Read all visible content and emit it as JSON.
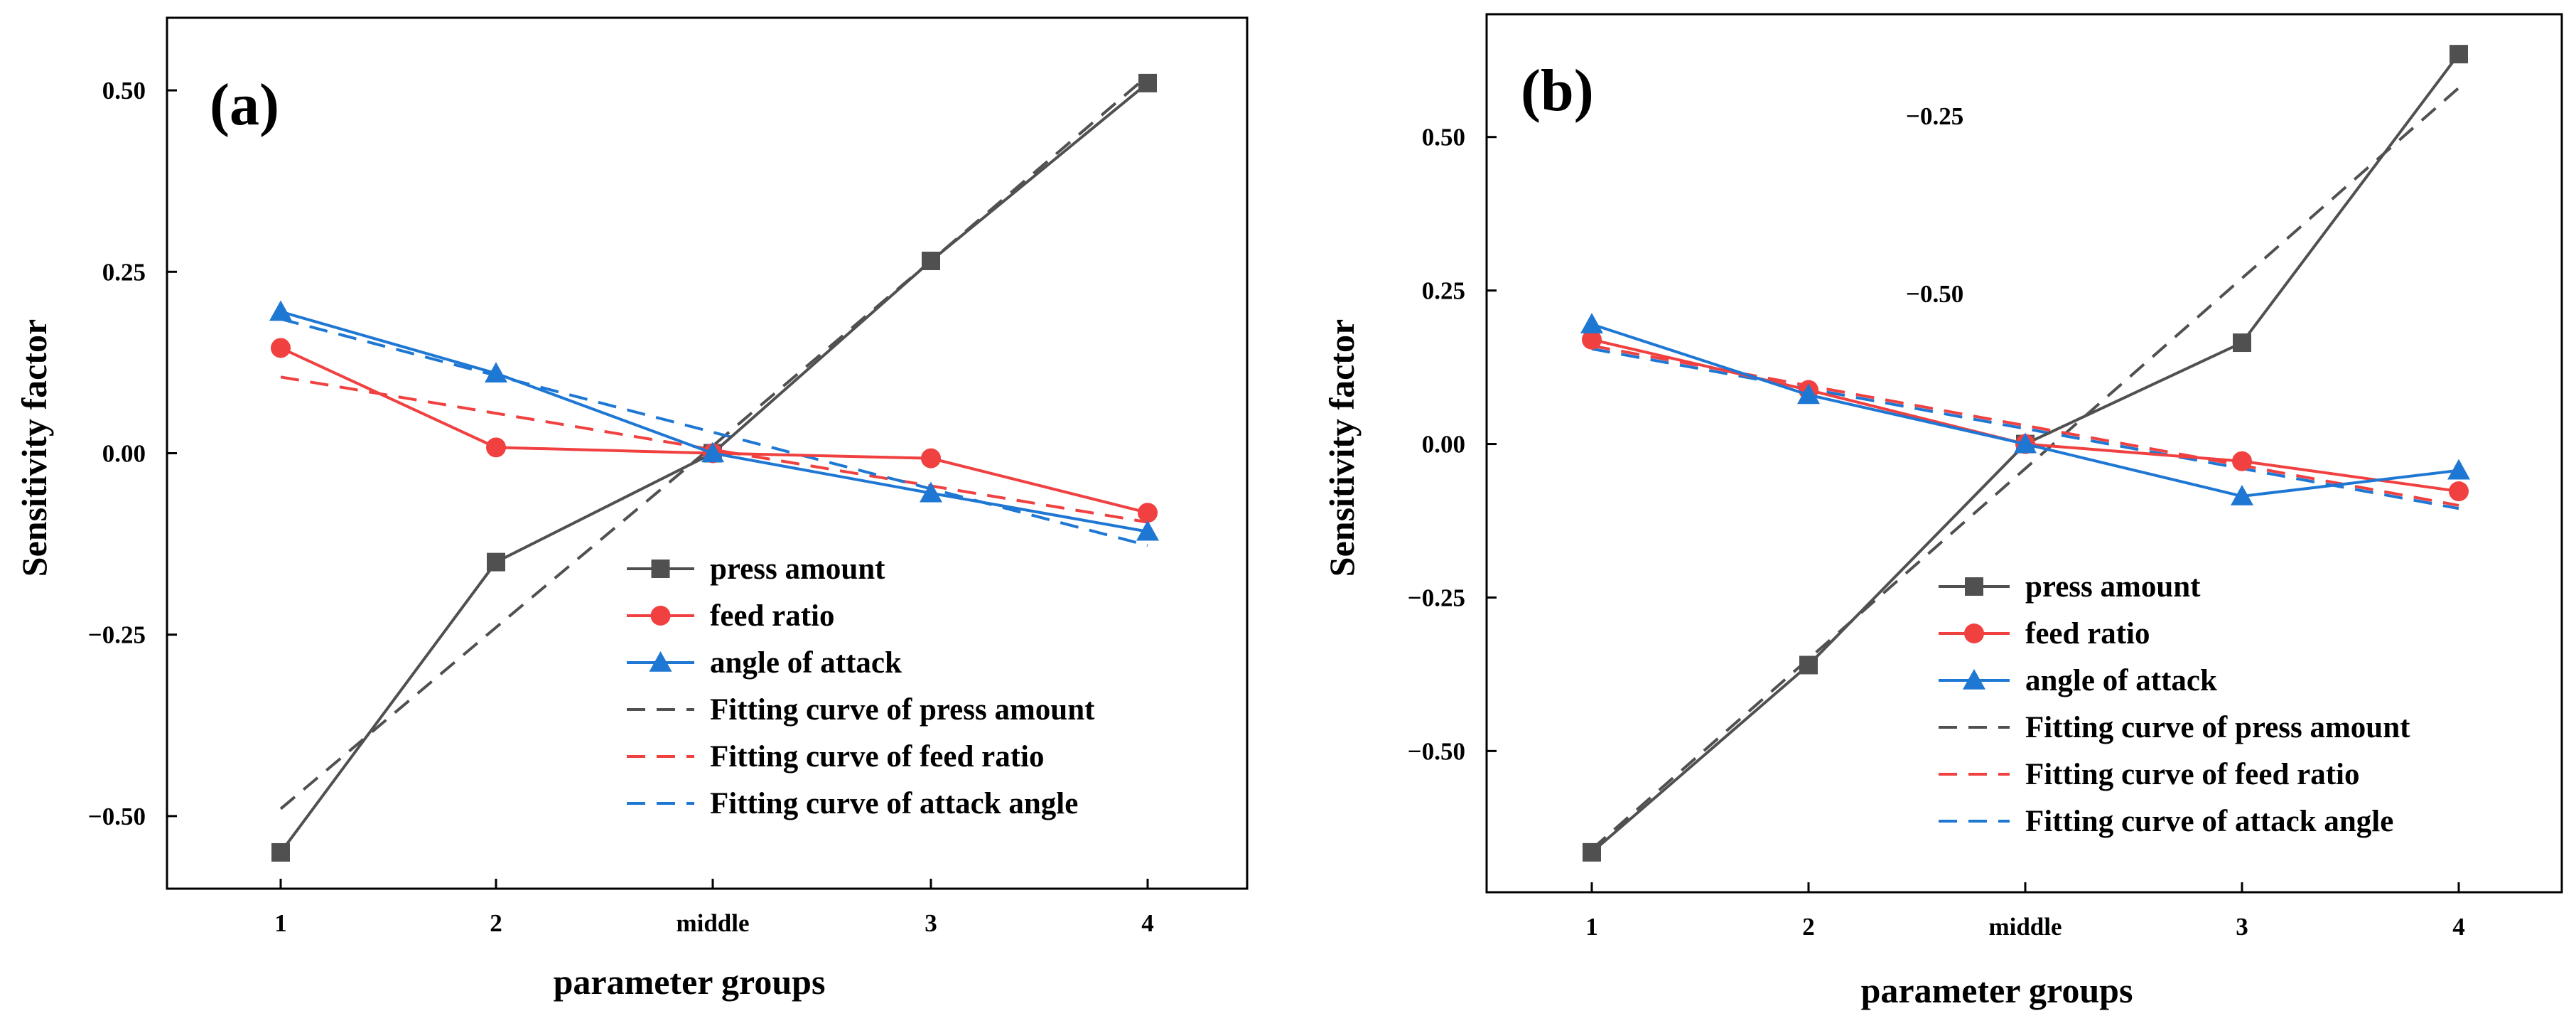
{
  "chart_data": [
    {
      "type": "line",
      "panel_label": "(a)",
      "xlabel": "parameter groups",
      "ylabel": "Sensitivity factor",
      "categories": [
        "1",
        "2",
        "middle",
        "3",
        "4"
      ],
      "ylim": [
        -0.6,
        0.6
      ],
      "yticks": [
        0.5,
        0.25,
        0.0,
        -0.25,
        -0.5
      ],
      "ytick_labels": [
        "0.50",
        "0.25",
        "0.00",
        "−0.25",
        "−0.50"
      ],
      "legend_position": "lower-right",
      "series": [
        {
          "name": "press amount",
          "style": "solid",
          "marker": "square",
          "color": "#505050",
          "values": [
            -0.55,
            -0.15,
            0.0,
            0.265,
            0.51
          ]
        },
        {
          "name": "feed ratio",
          "style": "solid",
          "marker": "circle",
          "color": "#f04040",
          "values": [
            0.145,
            0.008,
            0.0,
            -0.007,
            -0.082
          ]
        },
        {
          "name": "angle of attack",
          "style": "solid",
          "marker": "triangle",
          "color": "#1f77d4",
          "values": [
            0.195,
            0.11,
            0.0,
            -0.055,
            -0.108
          ]
        },
        {
          "name": "Fitting curve of press amount",
          "style": "dashed",
          "color": "#505050",
          "values": [
            -0.49,
            -0.24,
            0.01,
            0.265,
            0.52
          ]
        },
        {
          "name": "Fitting curve of feed ratio",
          "style": "dashed",
          "color": "#f04040",
          "values": [
            0.105,
            0.055,
            0.005,
            -0.045,
            -0.095
          ]
        },
        {
          "name": "Fitting curve of attack angle",
          "style": "dashed",
          "color": "#1f77d4",
          "values": [
            0.185,
            0.107,
            0.029,
            -0.049,
            -0.127
          ]
        }
      ]
    },
    {
      "type": "line",
      "panel_label": "(b)",
      "xlabel": "parameter groups",
      "ylabel": "Sensitivity factor",
      "categories": [
        "1",
        "2",
        "middle",
        "3",
        "4"
      ],
      "ylim": [
        -0.73,
        0.7
      ],
      "yticks": [
        0.5,
        0.25,
        0.0,
        -0.25,
        -0.5
      ],
      "ytick_labels": [
        "0.50",
        "0.25",
        "0.00",
        "−0.25",
        "−0.50"
      ],
      "stray_labels": [
        "−0.25",
        "−0.50"
      ],
      "legend_position": "lower-right",
      "series": [
        {
          "name": "press amount",
          "style": "solid",
          "marker": "square",
          "color": "#505050",
          "values": [
            -0.665,
            -0.36,
            0.0,
            0.165,
            0.635
          ]
        },
        {
          "name": "feed ratio",
          "style": "solid",
          "marker": "circle",
          "color": "#f04040",
          "values": [
            0.17,
            0.088,
            0.0,
            -0.028,
            -0.077
          ]
        },
        {
          "name": "angle of attack",
          "style": "solid",
          "marker": "triangle",
          "color": "#1f77d4",
          "values": [
            0.195,
            0.08,
            0.0,
            -0.085,
            -0.043
          ]
        },
        {
          "name": "Fitting curve of press amount",
          "style": "dashed",
          "color": "#505050",
          "values": [
            -0.66,
            -0.35,
            -0.04,
            0.27,
            0.58
          ]
        },
        {
          "name": "Fitting curve of feed ratio",
          "style": "dashed",
          "color": "#f04040",
          "values": [
            0.16,
            0.095,
            0.03,
            -0.035,
            -0.1
          ]
        },
        {
          "name": "Fitting curve of attack angle",
          "style": "dashed",
          "color": "#1f77d4",
          "values": [
            0.155,
            0.09,
            0.025,
            -0.04,
            -0.105
          ]
        }
      ]
    }
  ]
}
